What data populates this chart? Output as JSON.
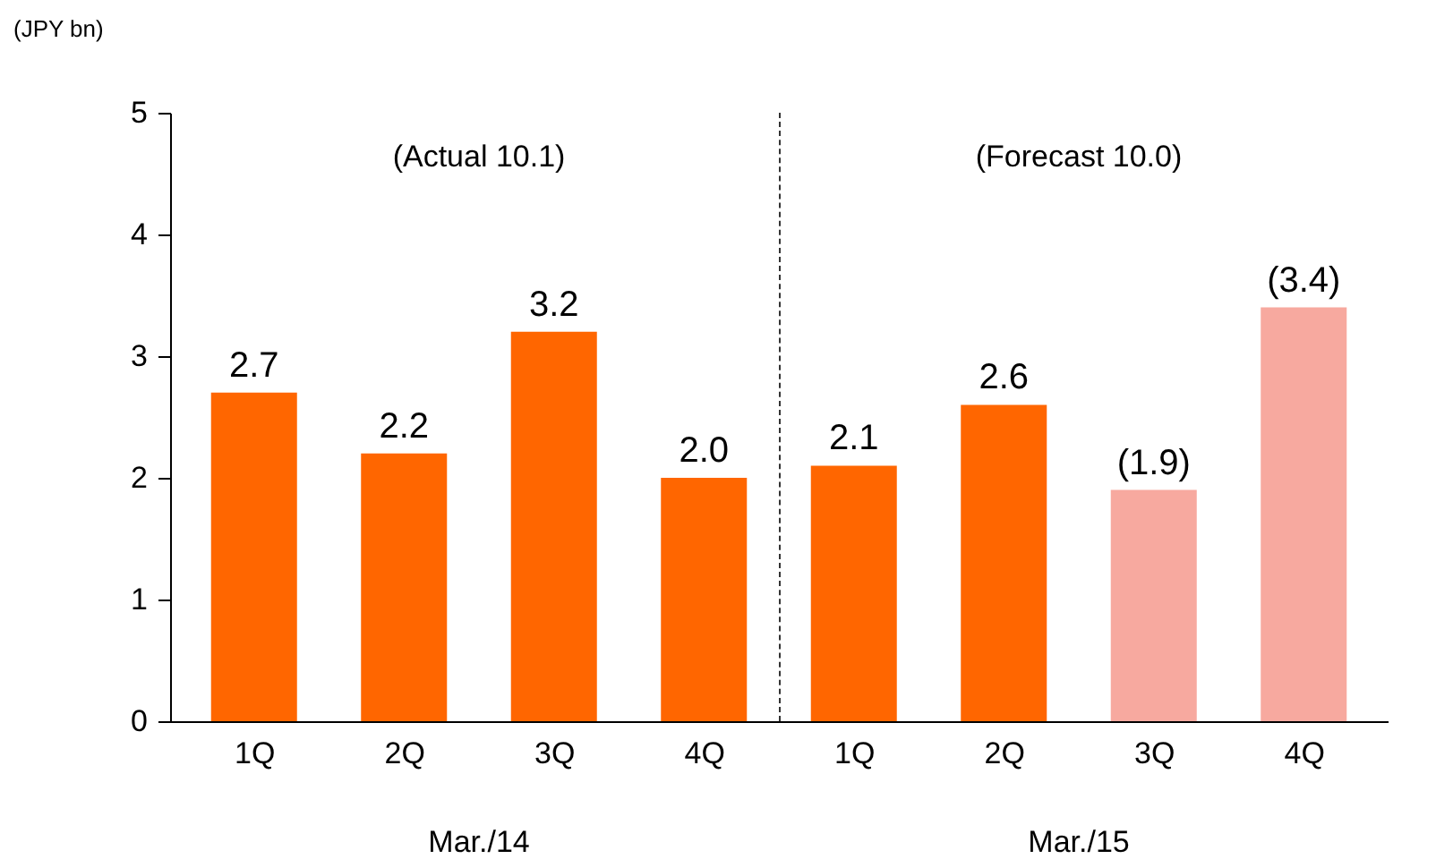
{
  "chart_data": {
    "type": "bar",
    "ylabel": "(JPY bn)",
    "categories": [
      "1Q",
      "2Q",
      "3Q",
      "4Q",
      "1Q",
      "2Q",
      "3Q",
      "4Q"
    ],
    "values": [
      2.7,
      2.2,
      3.2,
      2.0,
      2.1,
      2.6,
      1.9,
      3.4
    ],
    "colors": [
      "#ff6600",
      "#ff6600",
      "#ff6600",
      "#ff6600",
      "#ff6600",
      "#ff6600",
      "#f7a99f",
      "#f7a99f"
    ],
    "value_labels": [
      "2.7",
      "2.2",
      "3.2",
      "2.0",
      "2.1",
      "2.6",
      "(1.9)",
      "(3.4)"
    ],
    "annotations": [
      "(Actual 10.1)",
      "(Forecast 10.0)",
      "Mar./14",
      "Mar./15"
    ],
    "ylim": [
      0,
      5
    ],
    "yticks": [
      0,
      1,
      2,
      3,
      4,
      5
    ],
    "grid": false
  }
}
